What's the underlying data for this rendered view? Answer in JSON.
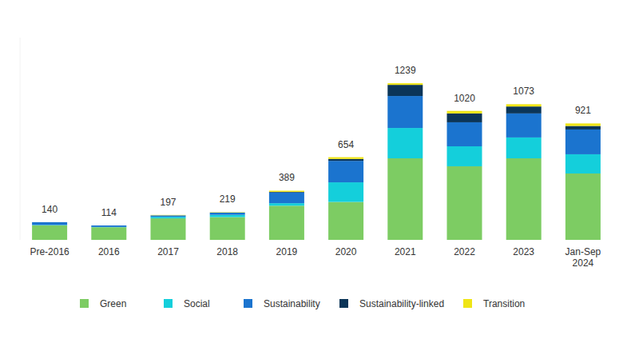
{
  "chart_data": {
    "type": "bar",
    "stacked": true,
    "orientation": "vertical",
    "categories": [
      "Pre-2016",
      "2016",
      "2017",
      "2018",
      "2019",
      "2020",
      "2021",
      "2022",
      "2023",
      "Jan-Sep 2024"
    ],
    "series": [
      {
        "name": "Green",
        "color": "#7dcc63",
        "values": [
          115,
          100,
          170,
          180,
          270,
          300,
          645,
          582,
          645,
          525
        ]
      },
      {
        "name": "Social",
        "color": "#14cfdb",
        "values": [
          3,
          2,
          12,
          18,
          20,
          155,
          240,
          158,
          165,
          152
        ]
      },
      {
        "name": "Sustainability",
        "color": "#1b74cf",
        "values": [
          22,
          12,
          12,
          18,
          85,
          170,
          253,
          190,
          190,
          196
        ]
      },
      {
        "name": "Sustainability-linked",
        "color": "#0b3558",
        "values": [
          0,
          0,
          0,
          0,
          5,
          15,
          88,
          70,
          55,
          28
        ]
      },
      {
        "name": "Transition",
        "color": "#efe515",
        "values": [
          0,
          0,
          3,
          3,
          9,
          14,
          13,
          20,
          18,
          20
        ]
      }
    ],
    "totals": [
      140,
      114,
      197,
      219,
      389,
      654,
      1239,
      1020,
      1073,
      921
    ],
    "ylim": [
      0,
      1600
    ],
    "tick_labels": "x",
    "legend": "bottom"
  }
}
